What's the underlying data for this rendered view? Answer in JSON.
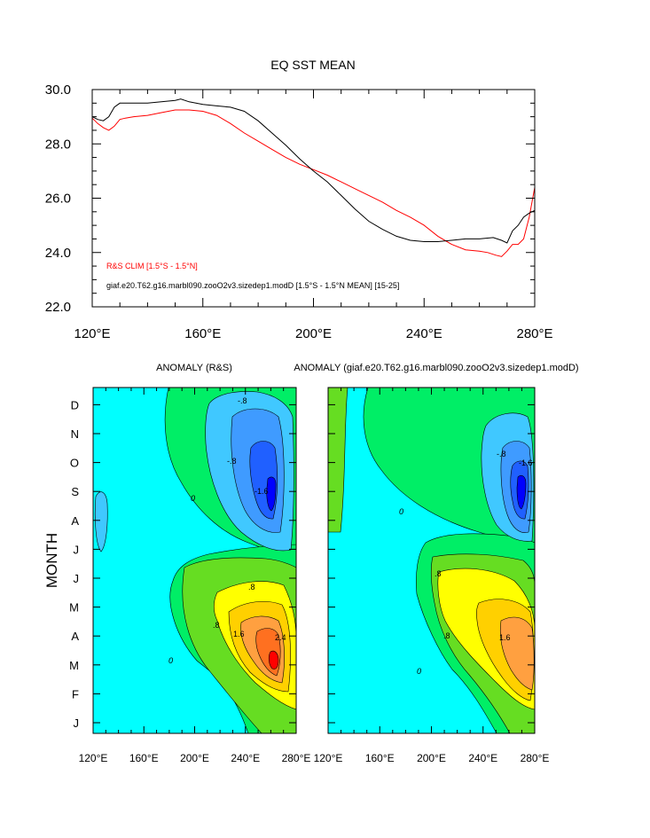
{
  "chart_data": [
    {
      "type": "line",
      "title": "EQ SST MEAN",
      "xlim": [
        120,
        280
      ],
      "ylim": [
        22,
        30
      ],
      "x_ticks": [
        120,
        160,
        200,
        240,
        280
      ],
      "x_tick_labels": [
        "120°E",
        "160°E",
        "200°E",
        "240°E",
        "280°E"
      ],
      "y_ticks": [
        22,
        24,
        26,
        28,
        30
      ],
      "y_tick_labels": [
        "22.0",
        "24.0",
        "26.0",
        "28.0",
        "30.0"
      ],
      "grid": false,
      "series": [
        {
          "name": "R&S CLIM [1.5°S - 1.5°N]",
          "color": "#ff0000",
          "x": [
            120,
            122,
            124,
            126,
            128,
            130,
            132,
            135,
            140,
            145,
            150,
            155,
            160,
            165,
            170,
            175,
            180,
            185,
            190,
            195,
            200,
            205,
            210,
            215,
            220,
            225,
            230,
            235,
            240,
            245,
            250,
            255,
            260,
            263,
            266,
            268,
            270,
            272,
            274,
            276,
            278,
            280
          ],
          "y": [
            28.95,
            28.75,
            28.6,
            28.5,
            28.65,
            28.9,
            28.95,
            29.0,
            29.05,
            29.15,
            29.25,
            29.25,
            29.2,
            29.05,
            28.75,
            28.4,
            28.1,
            27.8,
            27.5,
            27.25,
            27.05,
            26.85,
            26.6,
            26.35,
            26.1,
            25.85,
            25.55,
            25.3,
            25.0,
            24.6,
            24.3,
            24.1,
            24.05,
            24.0,
            23.9,
            23.85,
            24.05,
            24.3,
            24.3,
            24.5,
            25.3,
            26.4
          ]
        },
        {
          "name": "giaf.e20.T62.g16.marbl090.zooO2v3.sizedep1.modD [1.5°S - 1.5°N MEAN] [15-25]",
          "color": "#000000",
          "x": [
            120,
            122,
            124,
            126,
            128,
            130,
            135,
            140,
            145,
            150,
            152,
            155,
            160,
            165,
            170,
            175,
            180,
            185,
            190,
            195,
            200,
            205,
            210,
            215,
            220,
            225,
            230,
            235,
            240,
            245,
            250,
            255,
            260,
            265,
            268,
            270,
            272,
            274,
            276,
            278,
            280
          ],
          "y": [
            29.0,
            28.9,
            28.85,
            29.0,
            29.35,
            29.5,
            29.5,
            29.5,
            29.55,
            29.6,
            29.65,
            29.55,
            29.45,
            29.4,
            29.35,
            29.2,
            28.85,
            28.4,
            27.95,
            27.45,
            27.0,
            26.6,
            26.1,
            25.6,
            25.15,
            24.85,
            24.6,
            24.45,
            24.4,
            24.4,
            24.45,
            24.5,
            24.5,
            24.55,
            24.45,
            24.35,
            24.8,
            25.0,
            25.3,
            25.45,
            25.55
          ]
        }
      ]
    },
    {
      "type": "heatmap",
      "title": "ANOMALY (R&S)",
      "ylabel": "MONTH",
      "x_tick_labels": [
        "120°E",
        "160°E",
        "200°E",
        "240°E",
        "280°E"
      ],
      "y_tick_labels": [
        "J",
        "F",
        "M",
        "A",
        "M",
        "J",
        "J",
        "A",
        "S",
        "O",
        "N",
        "D"
      ],
      "contour_labels": [
        "0",
        ".8",
        "1.6",
        "2.4",
        "-.8",
        "-1.6"
      ],
      "extremes": [
        {
          "lon": 264,
          "month": "M",
          "level": "max"
        },
        {
          "lon": 265,
          "month": "S",
          "level": "min"
        }
      ]
    },
    {
      "type": "heatmap",
      "title": "ANOMALY (giaf.e20.T62.g16.marbl090.zooO2v3.sizedep1.modD)",
      "x_tick_labels": [
        "120°E",
        "160°E",
        "200°E",
        "240°E",
        "280°E"
      ],
      "contour_labels": [
        "0",
        ".8",
        "1.6",
        "-.8",
        "-1.6"
      ],
      "extremes": [
        {
          "lon": 268,
          "month": "M",
          "level": "max"
        },
        {
          "lon": 268,
          "month": "S",
          "level": "min"
        }
      ]
    }
  ],
  "colors": {
    "levels": [
      "#0000ff",
      "#2060ff",
      "#3f9bff",
      "#40c8ff",
      "#00ffff",
      "#00ffc0",
      "#00ee66",
      "#66dd22",
      "#cfe800",
      "#ffff00",
      "#ffd000",
      "#ffa040",
      "#ff7020",
      "#ff0000"
    ]
  }
}
